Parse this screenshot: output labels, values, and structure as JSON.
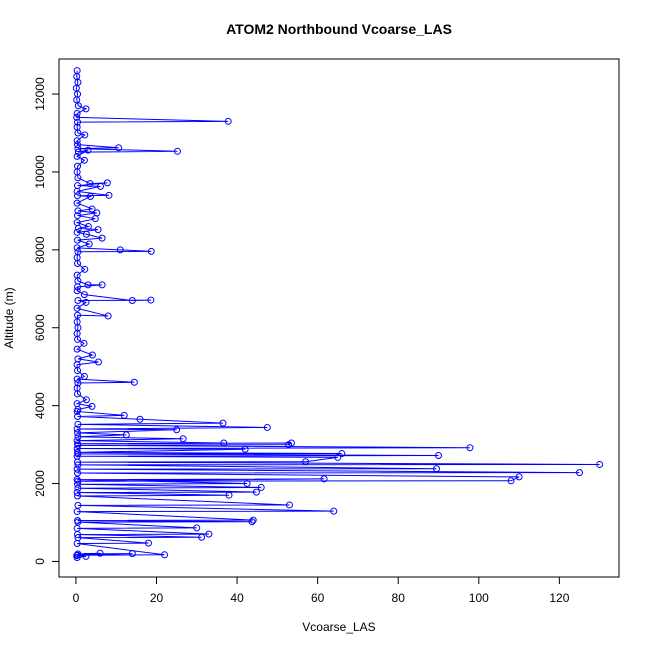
{
  "chart_data": {
    "type": "scatter",
    "title": "ATOM2 Northbound Vcoarse_LAS",
    "xlabel": "Vcoarse_LAS",
    "ylabel": "Altitude (m)",
    "xlim": [
      -4.2,
      134.8
    ],
    "ylim": [
      -400,
      12900
    ],
    "x_ticks": [
      0,
      20,
      40,
      60,
      80,
      100,
      120
    ],
    "y_ticks": [
      0,
      2000,
      4000,
      6000,
      8000,
      10000,
      12000
    ],
    "grid": false,
    "series_color": "#0000ff",
    "series": [
      {
        "style": "points-and-lines",
        "points": [
          [
            0.3,
            12600
          ],
          [
            0.2,
            12450
          ],
          [
            0.5,
            12300
          ],
          [
            0.1,
            12150
          ],
          [
            0.4,
            12000
          ],
          [
            0.2,
            11850
          ],
          [
            0.6,
            11700
          ],
          [
            2.5,
            11620
          ],
          [
            0.3,
            11500
          ],
          [
            0.2,
            11400
          ],
          [
            37.8,
            11300
          ],
          [
            0.4,
            11280
          ],
          [
            0.3,
            11150
          ],
          [
            0.5,
            11000
          ],
          [
            2.2,
            10950
          ],
          [
            0.3,
            10800
          ],
          [
            0.4,
            10700
          ],
          [
            10.6,
            10620
          ],
          [
            0.5,
            10600
          ],
          [
            25.2,
            10530
          ],
          [
            0.6,
            10510
          ],
          [
            3.0,
            10560
          ],
          [
            0.3,
            10400
          ],
          [
            2.1,
            10300
          ],
          [
            0.4,
            10150
          ],
          [
            0.3,
            10000
          ],
          [
            0.5,
            9850
          ],
          [
            3.5,
            9700
          ],
          [
            7.8,
            9720
          ],
          [
            0.4,
            9650
          ],
          [
            6.1,
            9630
          ],
          [
            0.3,
            9500
          ],
          [
            8.2,
            9400
          ],
          [
            0.4,
            9390
          ],
          [
            3.6,
            9370
          ],
          [
            0.3,
            9200
          ],
          [
            4.0,
            9050
          ],
          [
            0.5,
            9000
          ],
          [
            5.2,
            8950
          ],
          [
            0.4,
            8880
          ],
          [
            4.8,
            8800
          ],
          [
            0.3,
            8700
          ],
          [
            3.1,
            8600
          ],
          [
            0.6,
            8550
          ],
          [
            5.5,
            8520
          ],
          [
            0.3,
            8450
          ],
          [
            2.6,
            8400
          ],
          [
            6.5,
            8300
          ],
          [
            0.4,
            8250
          ],
          [
            3.3,
            8150
          ],
          [
            0.3,
            8050
          ],
          [
            11.0,
            8000
          ],
          [
            18.7,
            7960
          ],
          [
            0.5,
            7950
          ],
          [
            0.3,
            7800
          ],
          [
            0.4,
            7650
          ],
          [
            2.2,
            7500
          ],
          [
            0.3,
            7350
          ],
          [
            0.5,
            7200
          ],
          [
            3.0,
            7100
          ],
          [
            6.5,
            7100
          ],
          [
            0.4,
            7050
          ],
          [
            0.3,
            6950
          ],
          [
            2.1,
            6850
          ],
          [
            14.0,
            6700
          ],
          [
            18.6,
            6710
          ],
          [
            0.5,
            6700
          ],
          [
            2.5,
            6650
          ],
          [
            0.3,
            6500
          ],
          [
            8.0,
            6300
          ],
          [
            0.4,
            6320
          ],
          [
            0.3,
            6150
          ],
          [
            0.5,
            6000
          ],
          [
            0.3,
            5850
          ],
          [
            0.4,
            5700
          ],
          [
            2.0,
            5600
          ],
          [
            0.3,
            5450
          ],
          [
            4.1,
            5300
          ],
          [
            0.5,
            5200
          ],
          [
            5.6,
            5120
          ],
          [
            0.3,
            5050
          ],
          [
            0.4,
            4900
          ],
          [
            2.1,
            4750
          ],
          [
            0.3,
            4680
          ],
          [
            14.5,
            4600
          ],
          [
            0.5,
            4580
          ],
          [
            0.3,
            4450
          ],
          [
            0.4,
            4300
          ],
          [
            2.6,
            4150
          ],
          [
            0.3,
            4050
          ],
          [
            4.0,
            3980
          ],
          [
            0.5,
            3900
          ],
          [
            0.3,
            3850
          ],
          [
            12.0,
            3750
          ],
          [
            0.4,
            3720
          ],
          [
            15.9,
            3650
          ],
          [
            36.5,
            3550
          ],
          [
            0.5,
            3520
          ],
          [
            47.5,
            3440
          ],
          [
            0.3,
            3400
          ],
          [
            25.0,
            3380
          ],
          [
            0.4,
            3300
          ],
          [
            12.5,
            3250
          ],
          [
            0.5,
            3200
          ],
          [
            26.6,
            3150
          ],
          [
            0.3,
            3100
          ],
          [
            36.7,
            3040
          ],
          [
            0.4,
            3020
          ],
          [
            53.5,
            3040
          ],
          [
            52.8,
            3000
          ],
          [
            0.5,
            2980
          ],
          [
            97.8,
            2920
          ],
          [
            0.3,
            2900
          ],
          [
            42.0,
            2880
          ],
          [
            0.4,
            2800
          ],
          [
            66.0,
            2770
          ],
          [
            0.5,
            2760
          ],
          [
            90.0,
            2720
          ],
          [
            0.3,
            2700
          ],
          [
            65.0,
            2670
          ],
          [
            57.0,
            2560
          ],
          [
            0.4,
            2550
          ],
          [
            130.0,
            2490
          ],
          [
            0.5,
            2480
          ],
          [
            89.5,
            2380
          ],
          [
            0.3,
            2370
          ],
          [
            125.0,
            2280
          ],
          [
            0.4,
            2270
          ],
          [
            110.0,
            2170
          ],
          [
            108.0,
            2070
          ],
          [
            0.5,
            2060
          ],
          [
            61.6,
            2120
          ],
          [
            0.3,
            2100
          ],
          [
            42.5,
            2000
          ],
          [
            0.4,
            1980
          ],
          [
            46.0,
            1900
          ],
          [
            0.5,
            1880
          ],
          [
            44.8,
            1780
          ],
          [
            0.3,
            1770
          ],
          [
            38.0,
            1700
          ],
          [
            0.4,
            1680
          ],
          [
            53.0,
            1450
          ],
          [
            0.5,
            1440
          ],
          [
            64.0,
            1290
          ],
          [
            0.3,
            1280
          ],
          [
            44.0,
            1060
          ],
          [
            0.4,
            1050
          ],
          [
            43.7,
            1020
          ],
          [
            0.5,
            1010
          ],
          [
            30.0,
            860
          ],
          [
            0.3,
            850
          ],
          [
            33.0,
            700
          ],
          [
            0.4,
            690
          ],
          [
            31.2,
            620
          ],
          [
            0.5,
            610
          ],
          [
            18.0,
            470
          ],
          [
            0.3,
            460
          ],
          [
            22.0,
            170
          ],
          [
            0.4,
            160
          ],
          [
            14.0,
            200
          ],
          [
            0.5,
            190
          ],
          [
            6.0,
            210
          ],
          [
            0.2,
            150
          ],
          [
            2.5,
            130
          ],
          [
            0.3,
            100
          ]
        ]
      }
    ]
  }
}
